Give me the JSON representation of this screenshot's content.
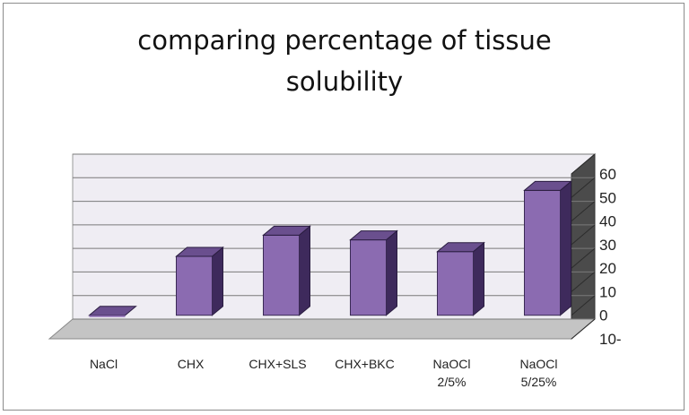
{
  "chart_data": {
    "type": "bar",
    "title_lines": [
      "comparing percentage of tissue",
      "solubility"
    ],
    "categories": [
      [
        "NaCl"
      ],
      [
        "CHX"
      ],
      [
        "CHX+SLS"
      ],
      [
        "CHX+BKC"
      ],
      [
        "NaOCl",
        "2/5%"
      ],
      [
        "NaOCl",
        "5/25%"
      ]
    ],
    "values": [
      -2,
      25,
      34,
      32,
      27,
      53
    ],
    "y_tick_labels": [
      "10-",
      "0",
      "10",
      "20",
      "30",
      "40",
      "50",
      "60"
    ],
    "ylim": [
      -10,
      60
    ],
    "grid": true,
    "legend": "none",
    "colors": {
      "bar_front": "#8b6bb1",
      "bar_top": "#6a4f8e",
      "bar_side": "#3e2a5c",
      "back_wall": "#efedf3",
      "floor": "#c4c4c4",
      "side_wall": "#4b4b4b"
    }
  }
}
